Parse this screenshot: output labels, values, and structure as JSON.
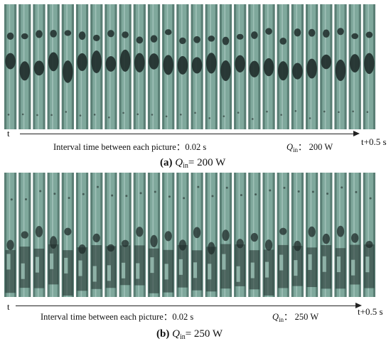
{
  "panel_a": {
    "t_start": "t",
    "t_end": "t+0.5 s",
    "interval_text": "Interval time between each picture：0.02 s",
    "q_symbol": "Q",
    "q_subscript": "in",
    "q_value": "：  200 W",
    "caption_letter": "(a)",
    "caption_symbol": "Q",
    "caption_subscript": "in",
    "caption_value": "= 200 W",
    "frame_count": 26
  },
  "panel_b": {
    "t_start": "t",
    "t_end": "t+0.5 s",
    "interval_text": "Interval time between each picture：0.02 s",
    "q_symbol": "Q",
    "q_subscript": "in",
    "q_value": "：  250 W",
    "caption_letter": "(b)",
    "caption_symbol": "Q",
    "caption_subscript": "in",
    "caption_value": "= 250 W",
    "frame_count": 26
  },
  "colors": {
    "tube": "#7fa89c",
    "tube_dark": "#3d5c55",
    "tube_light": "#bcd6cf",
    "bubble": "#1f2b2a",
    "liquid_slug": "#9ec3b8"
  }
}
